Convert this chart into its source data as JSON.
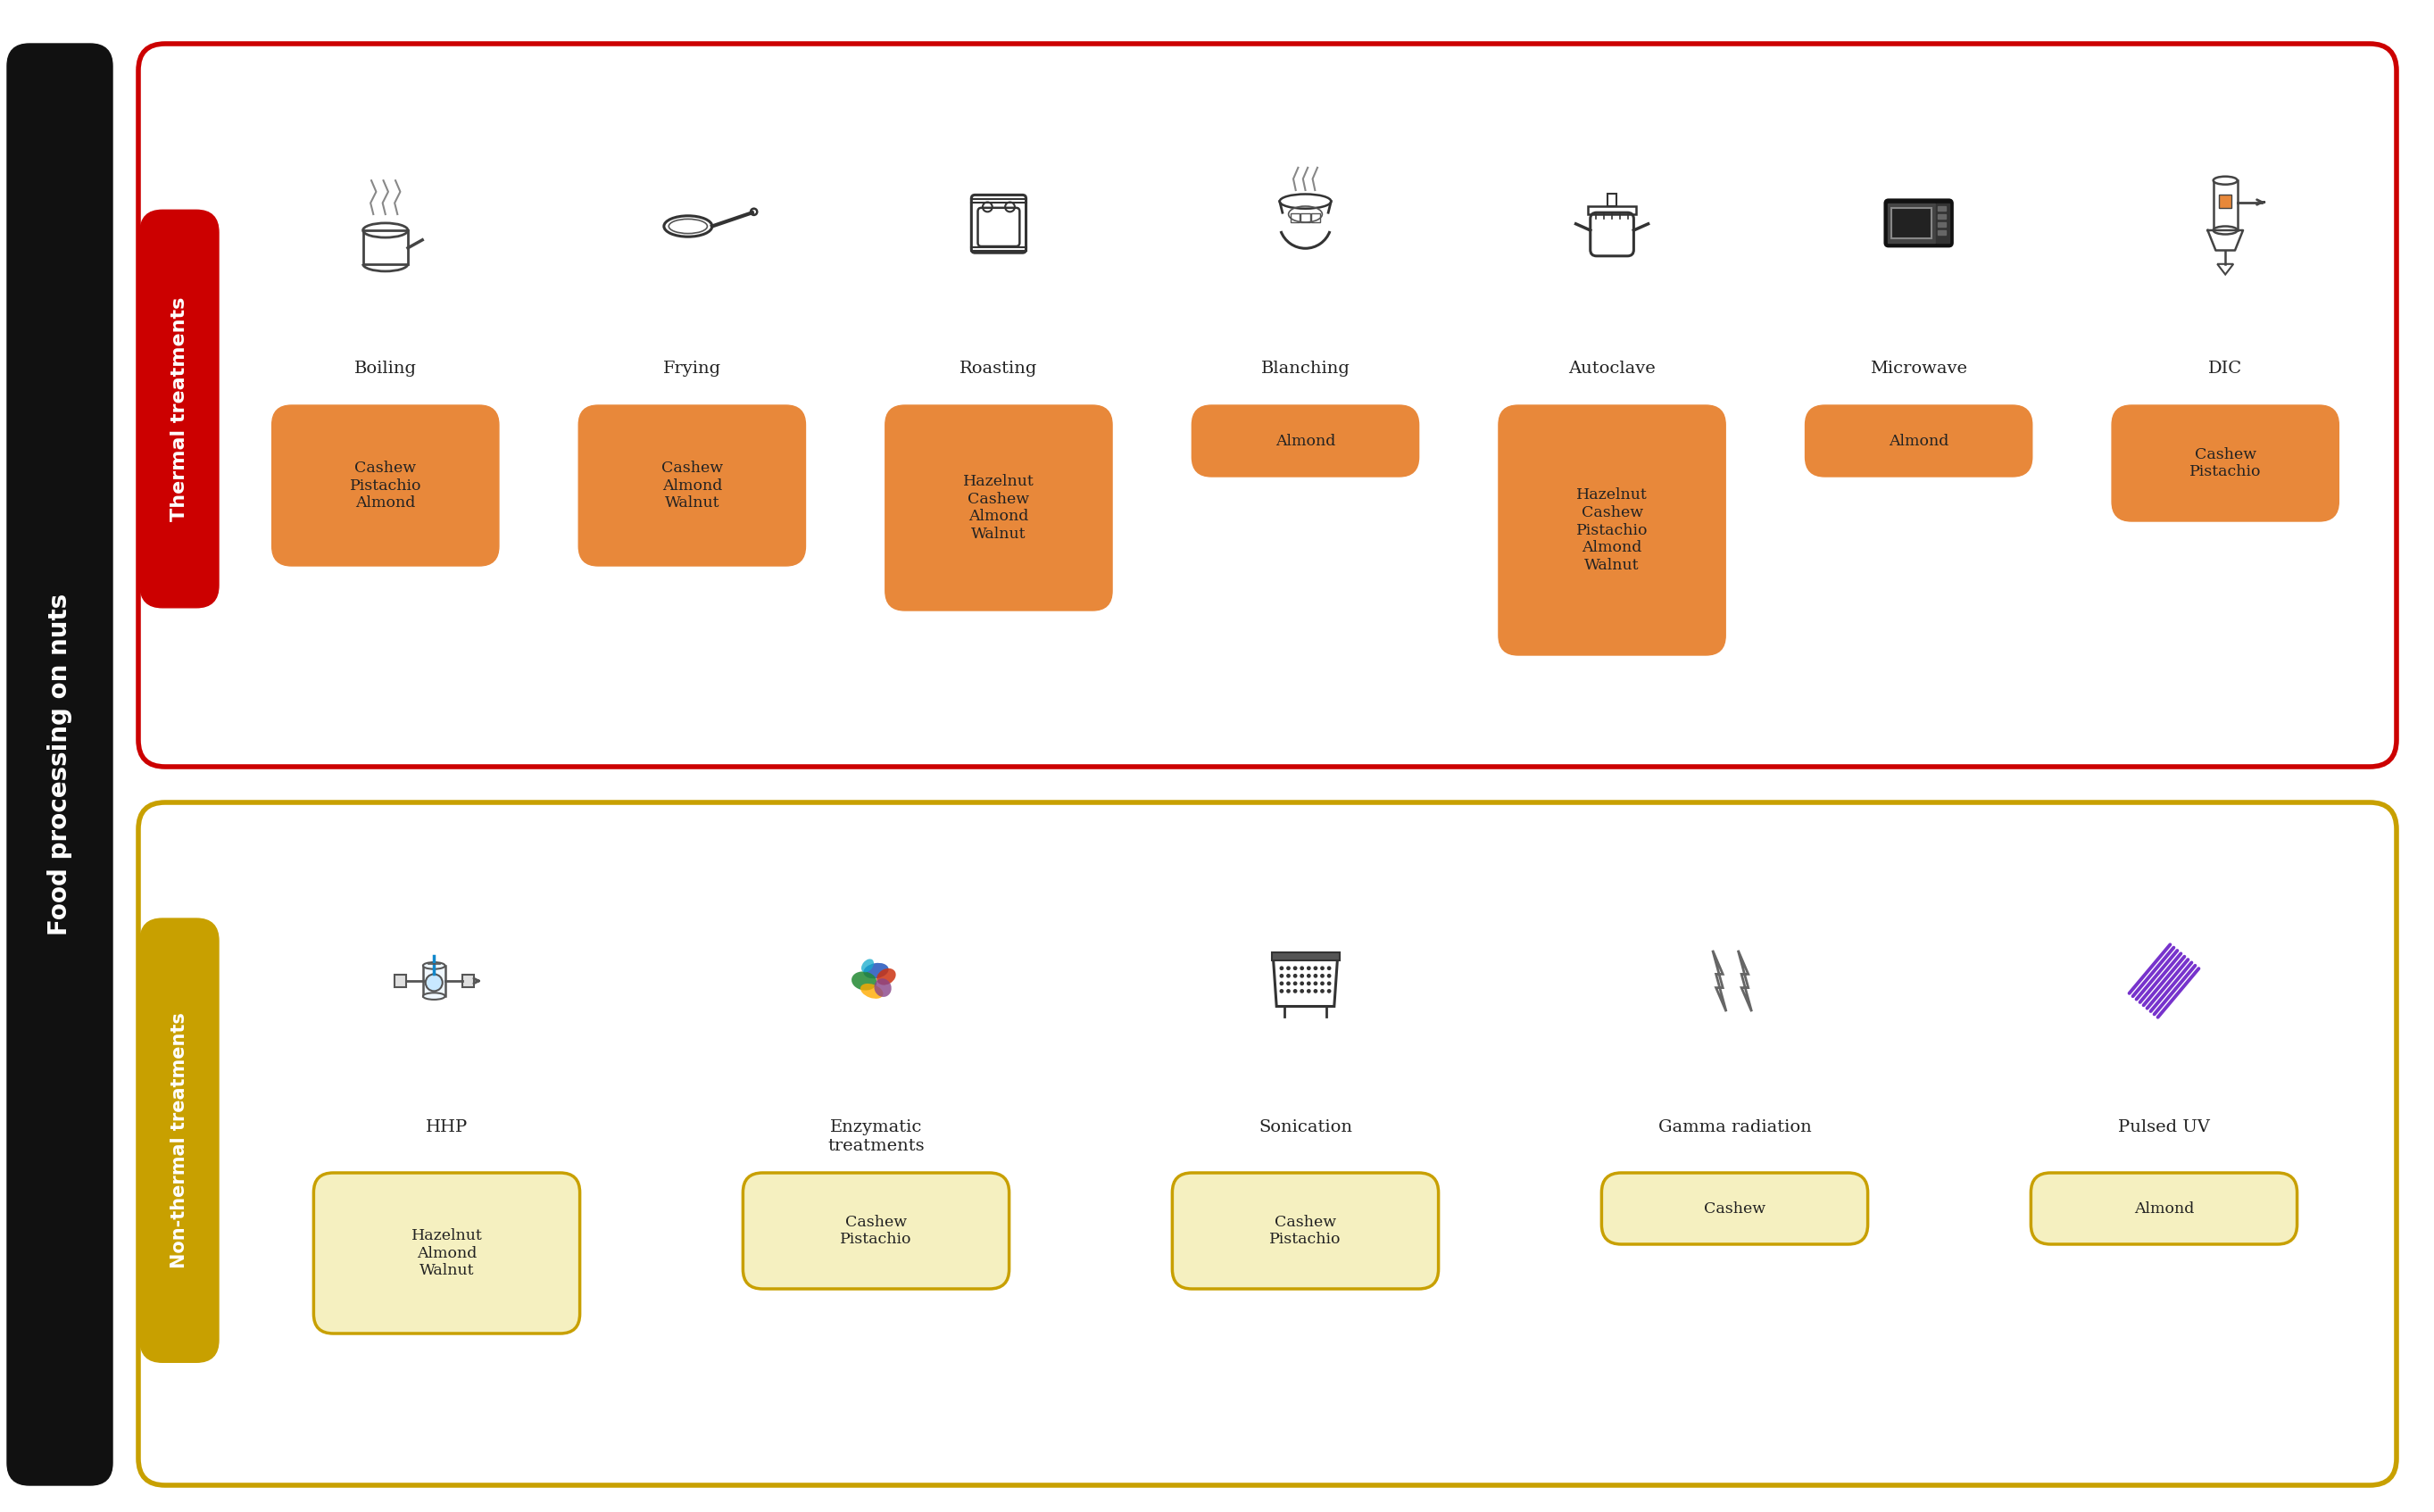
{
  "left_label": "Food processing on nuts",
  "thermal_label": "Thermal treatments",
  "nonthermal_label": "Non-thermal treatments",
  "thermal_border_color": "#cc0000",
  "nonthermal_border_color": "#c8a000",
  "thermal_box_facecolor": "#e8883a",
  "thermal_box_edgecolor": "#e8883a",
  "nonthermal_box_facecolor": "#f5f0c0",
  "nonthermal_box_edgecolor": "#c8a000",
  "left_label_bg": "#111111",
  "thermal_label_bg": "#cc0000",
  "nonthermal_label_bg": "#c8a000",
  "thermal_treatments": [
    {
      "name": "Boiling",
      "nuts": [
        "Cashew",
        "Pistachio",
        "Almond"
      ]
    },
    {
      "name": "Frying",
      "nuts": [
        "Cashew",
        "Almond",
        "Walnut"
      ]
    },
    {
      "name": "Roasting",
      "nuts": [
        "Hazelnut",
        "Cashew",
        "Almond",
        "Walnut"
      ]
    },
    {
      "name": "Blanching",
      "nuts": [
        "Almond"
      ]
    },
    {
      "name": "Autoclave",
      "nuts": [
        "Hazelnut",
        "Cashew",
        "Pistachio",
        "Almond",
        "Walnut"
      ]
    },
    {
      "name": "Microwave",
      "nuts": [
        "Almond"
      ]
    },
    {
      "name": "DIC",
      "nuts": [
        "Cashew",
        "Pistachio"
      ]
    }
  ],
  "nonthermal_treatments": [
    {
      "name": "HHP",
      "nuts": [
        "Hazelnut",
        "Almond",
        "Walnut"
      ]
    },
    {
      "name": "Enzymatic\ntreatments",
      "nuts": [
        "Cashew",
        "Pistachio"
      ]
    },
    {
      "name": "Sonication",
      "nuts": [
        "Cashew",
        "Pistachio"
      ]
    },
    {
      "name": "Gamma radiation",
      "nuts": [
        "Cashew"
      ]
    },
    {
      "name": "Pulsed UV",
      "nuts": [
        "Almond"
      ]
    }
  ],
  "background_color": "#ffffff"
}
